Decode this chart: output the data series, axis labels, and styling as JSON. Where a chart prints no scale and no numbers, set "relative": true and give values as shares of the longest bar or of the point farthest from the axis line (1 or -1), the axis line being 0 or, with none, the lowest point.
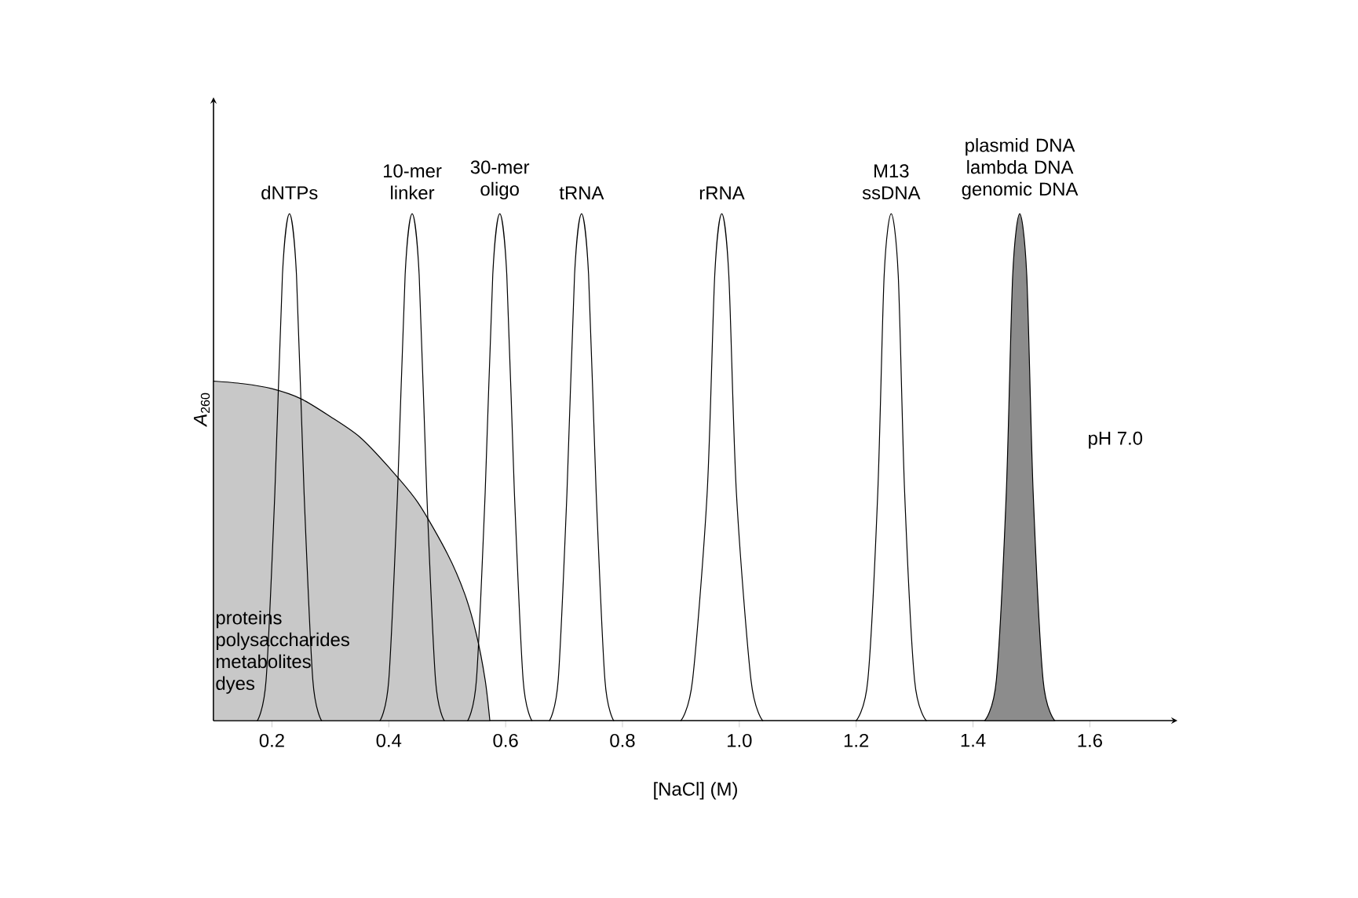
{
  "chart_data": {
    "type": "line",
    "relative": true,
    "xlabel": "[NaCl] (M)",
    "ylabel": "*A*$_{260}$",
    "xlim": [
      0.1,
      1.75
    ],
    "xticks": [
      0.2,
      0.4,
      0.6,
      0.8,
      {
        "value": 1.0,
        "label": "1.0"
      },
      1.2,
      1.4,
      1.6
    ],
    "annotations": [
      "pH 7.0"
    ],
    "series": [
      {
        "name": "proteins polysaccharides metabolites dyes",
        "type": "area",
        "color": "#c8c8c8",
        "x": [
          0.1,
          0.15,
          0.2,
          0.25,
          0.3,
          0.35,
          0.4,
          0.45,
          0.5,
          0.53,
          0.55,
          0.565,
          0.573
        ],
        "values": [
          0.67,
          0.665,
          0.655,
          0.635,
          0.6,
          0.56,
          0.5,
          0.43,
          0.33,
          0.25,
          0.17,
          0.08,
          0
        ]
      },
      {
        "name": "dNTPs",
        "color": "#000000",
        "x": [
          0.175,
          0.19,
          0.205,
          0.218,
          0.23,
          0.242,
          0.255,
          0.27,
          0.285
        ],
        "values": [
          0,
          0.08,
          0.45,
          0.88,
          1,
          0.88,
          0.45,
          0.08,
          0
        ]
      },
      {
        "name": "10-mer linker",
        "color": "#000000",
        "x": [
          0.385,
          0.4,
          0.415,
          0.428,
          0.44,
          0.452,
          0.465,
          0.48,
          0.495
        ],
        "values": [
          0,
          0.08,
          0.45,
          0.88,
          1,
          0.88,
          0.45,
          0.08,
          0
        ]
      },
      {
        "name": "30-mer oligo",
        "color": "#000000",
        "x": [
          0.535,
          0.55,
          0.565,
          0.578,
          0.59,
          0.602,
          0.615,
          0.63,
          0.645
        ],
        "values": [
          0,
          0.08,
          0.45,
          0.88,
          1,
          0.88,
          0.45,
          0.08,
          0
        ]
      },
      {
        "name": "tRNA",
        "color": "#000000",
        "x": [
          0.675,
          0.69,
          0.705,
          0.718,
          0.73,
          0.742,
          0.755,
          0.77,
          0.785
        ],
        "values": [
          0,
          0.08,
          0.45,
          0.88,
          1,
          0.88,
          0.45,
          0.08,
          0
        ]
      },
      {
        "name": "rRNA",
        "color": "#000000",
        "x": [
          0.9,
          0.92,
          0.945,
          0.958,
          0.97,
          0.982,
          0.995,
          1.02,
          1.04
        ],
        "values": [
          0,
          0.08,
          0.45,
          0.88,
          1,
          0.88,
          0.45,
          0.08,
          0
        ]
      },
      {
        "name": "M13 ssDNA",
        "color": "#000000",
        "x": [
          1.2,
          1.22,
          1.237,
          1.248,
          1.26,
          1.272,
          1.283,
          1.3,
          1.32
        ],
        "values": [
          0,
          0.08,
          0.45,
          0.88,
          1,
          0.88,
          0.45,
          0.08,
          0
        ]
      },
      {
        "name": "plasmid DNA lambda DNA genomic DNA",
        "type": "area",
        "color": "#8c8c8c",
        "x": [
          1.42,
          1.44,
          1.457,
          1.468,
          1.48,
          1.492,
          1.503,
          1.52,
          1.54
        ],
        "values": [
          0,
          0.08,
          0.45,
          0.88,
          1,
          0.88,
          0.45,
          0.08,
          0
        ]
      }
    ]
  }
}
